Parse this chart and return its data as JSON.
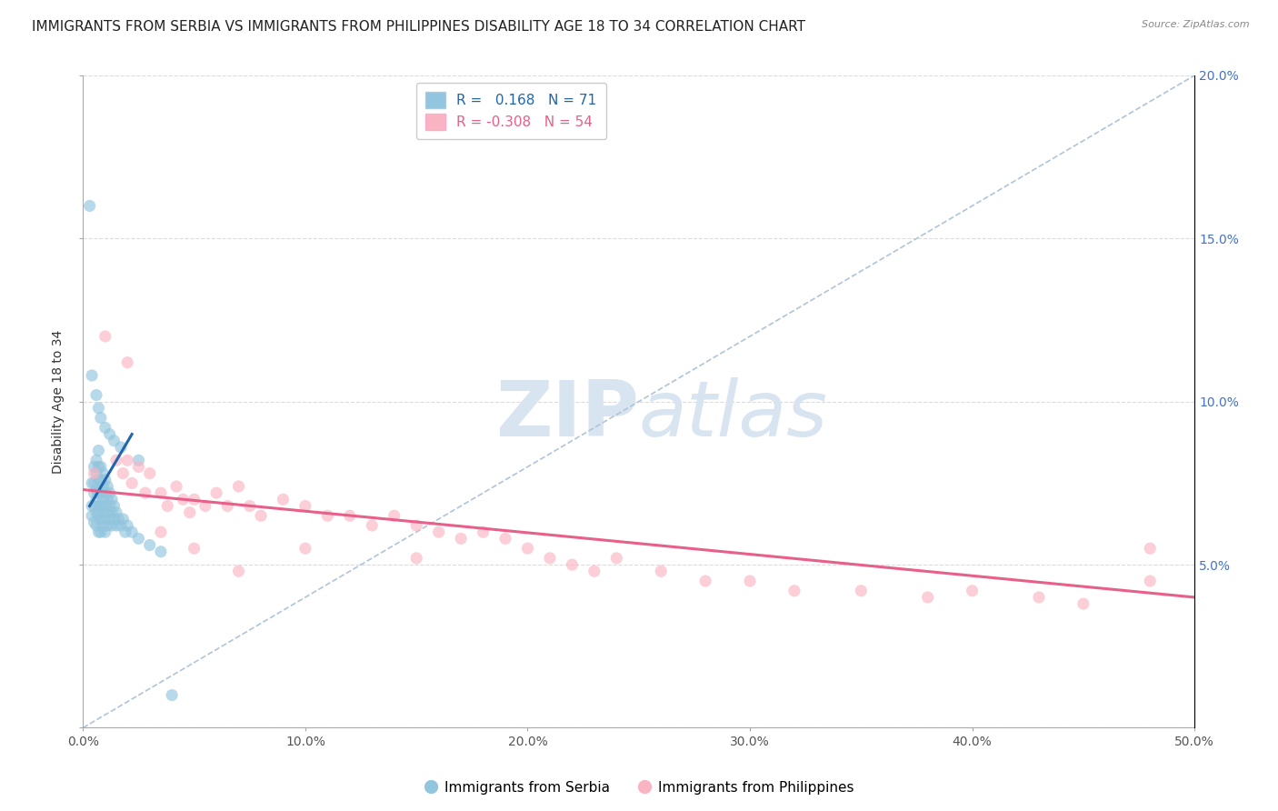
{
  "title": "IMMIGRANTS FROM SERBIA VS IMMIGRANTS FROM PHILIPPINES DISABILITY AGE 18 TO 34 CORRELATION CHART",
  "source": "Source: ZipAtlas.com",
  "ylabel": "Disability Age 18 to 34",
  "xlim": [
    0.0,
    0.5
  ],
  "ylim": [
    0.0,
    0.2
  ],
  "xticks": [
    0.0,
    0.1,
    0.2,
    0.3,
    0.4,
    0.5
  ],
  "yticks": [
    0.0,
    0.05,
    0.1,
    0.15,
    0.2
  ],
  "xtick_labels": [
    "0.0%",
    "10.0%",
    "20.0%",
    "30.0%",
    "40.0%",
    "50.0%"
  ],
  "ytick_labels_right": [
    "",
    "5.0%",
    "10.0%",
    "15.0%",
    "20.0%"
  ],
  "serbia_R": 0.168,
  "serbia_N": 71,
  "philippines_R": -0.308,
  "philippines_N": 54,
  "serbia_color": "#92c5de",
  "philippines_color": "#f9b4c4",
  "serbia_line_color": "#2166ac",
  "philippines_line_color": "#e8608a",
  "watermark_color": "#d8e4f0",
  "background_color": "#ffffff",
  "grid_color": "#d8d8d8",
  "title_fontsize": 11,
  "axis_label_fontsize": 10,
  "tick_fontsize": 10,
  "legend_fontsize": 11,
  "serbia_x": [
    0.004,
    0.004,
    0.004,
    0.005,
    0.005,
    0.005,
    0.005,
    0.005,
    0.006,
    0.006,
    0.006,
    0.006,
    0.006,
    0.006,
    0.007,
    0.007,
    0.007,
    0.007,
    0.007,
    0.007,
    0.007,
    0.008,
    0.008,
    0.008,
    0.008,
    0.008,
    0.008,
    0.009,
    0.009,
    0.009,
    0.009,
    0.009,
    0.01,
    0.01,
    0.01,
    0.01,
    0.01,
    0.011,
    0.011,
    0.011,
    0.011,
    0.012,
    0.012,
    0.012,
    0.013,
    0.013,
    0.013,
    0.014,
    0.014,
    0.015,
    0.015,
    0.016,
    0.017,
    0.018,
    0.019,
    0.02,
    0.022,
    0.025,
    0.03,
    0.035,
    0.004,
    0.006,
    0.007,
    0.008,
    0.01,
    0.012,
    0.014,
    0.017,
    0.025,
    0.003,
    0.04
  ],
  "serbia_y": [
    0.075,
    0.068,
    0.065,
    0.08,
    0.075,
    0.072,
    0.068,
    0.063,
    0.082,
    0.078,
    0.073,
    0.07,
    0.066,
    0.062,
    0.085,
    0.08,
    0.076,
    0.072,
    0.068,
    0.065,
    0.06,
    0.08,
    0.076,
    0.072,
    0.068,
    0.064,
    0.06,
    0.078,
    0.074,
    0.07,
    0.066,
    0.062,
    0.076,
    0.072,
    0.068,
    0.064,
    0.06,
    0.074,
    0.07,
    0.066,
    0.062,
    0.072,
    0.068,
    0.064,
    0.07,
    0.066,
    0.062,
    0.068,
    0.064,
    0.066,
    0.062,
    0.064,
    0.062,
    0.064,
    0.06,
    0.062,
    0.06,
    0.058,
    0.056,
    0.054,
    0.108,
    0.102,
    0.098,
    0.095,
    0.092,
    0.09,
    0.088,
    0.086,
    0.082,
    0.16,
    0.01
  ],
  "philippines_x": [
    0.005,
    0.01,
    0.015,
    0.018,
    0.02,
    0.022,
    0.025,
    0.028,
    0.03,
    0.035,
    0.038,
    0.042,
    0.045,
    0.048,
    0.05,
    0.055,
    0.06,
    0.065,
    0.07,
    0.075,
    0.08,
    0.09,
    0.1,
    0.11,
    0.12,
    0.13,
    0.14,
    0.15,
    0.16,
    0.17,
    0.18,
    0.19,
    0.2,
    0.21,
    0.22,
    0.23,
    0.24,
    0.26,
    0.28,
    0.3,
    0.32,
    0.35,
    0.38,
    0.4,
    0.43,
    0.45,
    0.48,
    0.02,
    0.035,
    0.05,
    0.07,
    0.1,
    0.15,
    0.48
  ],
  "philippines_y": [
    0.078,
    0.12,
    0.082,
    0.078,
    0.112,
    0.075,
    0.08,
    0.072,
    0.078,
    0.072,
    0.068,
    0.074,
    0.07,
    0.066,
    0.07,
    0.068,
    0.072,
    0.068,
    0.074,
    0.068,
    0.065,
    0.07,
    0.068,
    0.065,
    0.065,
    0.062,
    0.065,
    0.062,
    0.06,
    0.058,
    0.06,
    0.058,
    0.055,
    0.052,
    0.05,
    0.048,
    0.052,
    0.048,
    0.045,
    0.045,
    0.042,
    0.042,
    0.04,
    0.042,
    0.04,
    0.038,
    0.055,
    0.082,
    0.06,
    0.055,
    0.048,
    0.055,
    0.052,
    0.045
  ],
  "serbia_trendline_x": [
    0.003,
    0.022
  ],
  "serbia_trendline_y": [
    0.068,
    0.09
  ],
  "philippines_trendline_x": [
    0.0,
    0.5
  ],
  "philippines_trendline_y": [
    0.073,
    0.04
  ]
}
